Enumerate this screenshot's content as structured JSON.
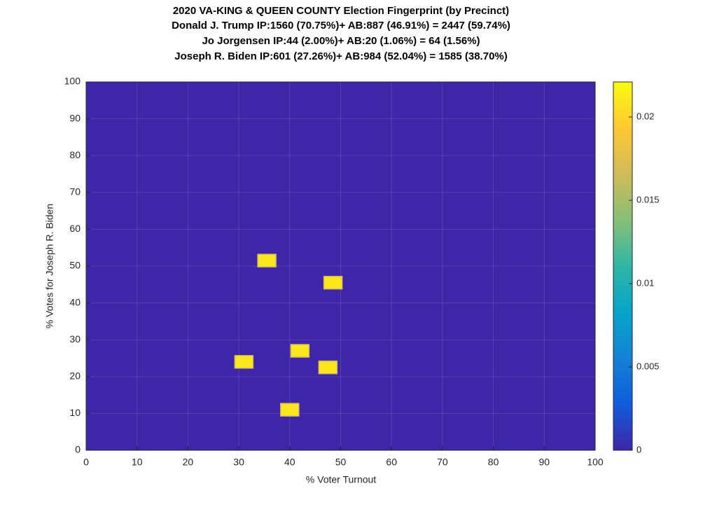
{
  "chart_data": {
    "type": "heatmap",
    "title": [
      "2020 VA-KING & QUEEN COUNTY Election Fingerprint (by Precinct)",
      "Donald J. Trump IP:1560 (70.75%)+ AB:887 (46.91%) = 2447 (59.74%)",
      "Jo Jorgensen IP:44 (2.00%)+ AB:20 (1.06%) = 64 (1.56%)",
      "Joseph R. Biden IP:601 (27.26%)+ AB:984 (52.04%) = 1585 (38.70%)"
    ],
    "x_label": "% Voter Turnout",
    "y_label": "% Votes for Joseph R. Biden",
    "x": [
      35.5,
      48.5,
      42,
      31,
      47.5,
      40
    ],
    "y": [
      51.5,
      45.5,
      27,
      24,
      22.5,
      11
    ],
    "values": [
      0.021,
      0.021,
      0.021,
      0.021,
      0.021,
      0.021
    ],
    "xlim": [
      0,
      100
    ],
    "ylim": [
      0,
      100
    ],
    "xticks": [
      0,
      10,
      20,
      30,
      40,
      50,
      60,
      70,
      80,
      90,
      100
    ],
    "yticks": [
      0,
      10,
      20,
      30,
      40,
      50,
      60,
      70,
      80,
      90,
      100
    ],
    "clim": [
      0,
      0.0221
    ],
    "cticks": [
      0,
      0.005,
      0.01,
      0.015,
      0.02
    ],
    "colormap": [
      "#3e26a8",
      "#0f5cdd",
      "#1481d6",
      "#06a4ca",
      "#2eb7a4",
      "#87bf77",
      "#d1bb59",
      "#fec832",
      "#f9fb0e"
    ],
    "grid": true
  }
}
